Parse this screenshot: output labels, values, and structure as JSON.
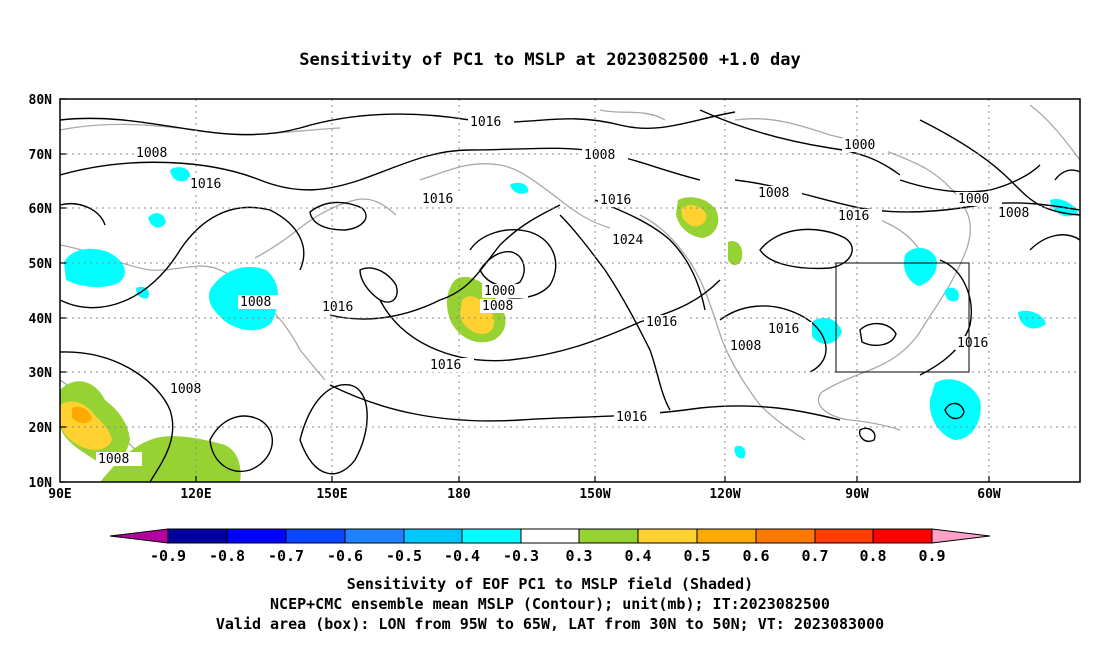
{
  "title": "Sensitivity of PC1 to MSLP at 2023082500 +1.0 day",
  "map": {
    "lat_ticks": [
      "80N",
      "70N",
      "60N",
      "50N",
      "40N",
      "30N",
      "20N",
      "10N"
    ],
    "lon_ticks": [
      "90E",
      "120E",
      "150E",
      "180",
      "150W",
      "120W",
      "90W",
      "60W"
    ],
    "contour_labels": [
      "1016",
      "1008",
      "1016",
      "1016",
      "1008",
      "1016",
      "1008",
      "1000",
      "1008",
      "1000",
      "1016",
      "1024",
      "1000",
      "1008",
      "1008",
      "1016",
      "1016",
      "1016",
      "1016",
      "1008",
      "1016",
      "1016",
      "1008",
      "1016",
      "1008"
    ],
    "valid_box": {
      "lon_west": "95W",
      "lon_east": "65W",
      "lat_south": "30N",
      "lat_north": "50N"
    }
  },
  "colorbar": {
    "colors": [
      "#b4009e",
      "#0000a0",
      "#0000ff",
      "#0a46ff",
      "#1e82ff",
      "#00c8ff",
      "#00ffff",
      "#ffffff",
      "#96d232",
      "#ffd232",
      "#ffaa00",
      "#ff7800",
      "#ff3c00",
      "#ff0000",
      "#ffa0c8"
    ],
    "labels": [
      "-0.9",
      "-0.8",
      "-0.7",
      "-0.6",
      "-0.5",
      "-0.4",
      "-0.3",
      "0.3",
      "0.4",
      "0.5",
      "0.6",
      "0.7",
      "0.8",
      "0.9"
    ]
  },
  "captions": [
    "Sensitivity of EOF PC1 to MSLP field (Shaded)",
    "NCEP+CMC ensemble mean MSLP (Contour); unit(mb); IT:2023082500",
    "Valid area (box): LON from 95W to 65W, LAT from 30N to 50N; VT: 2023083000"
  ]
}
